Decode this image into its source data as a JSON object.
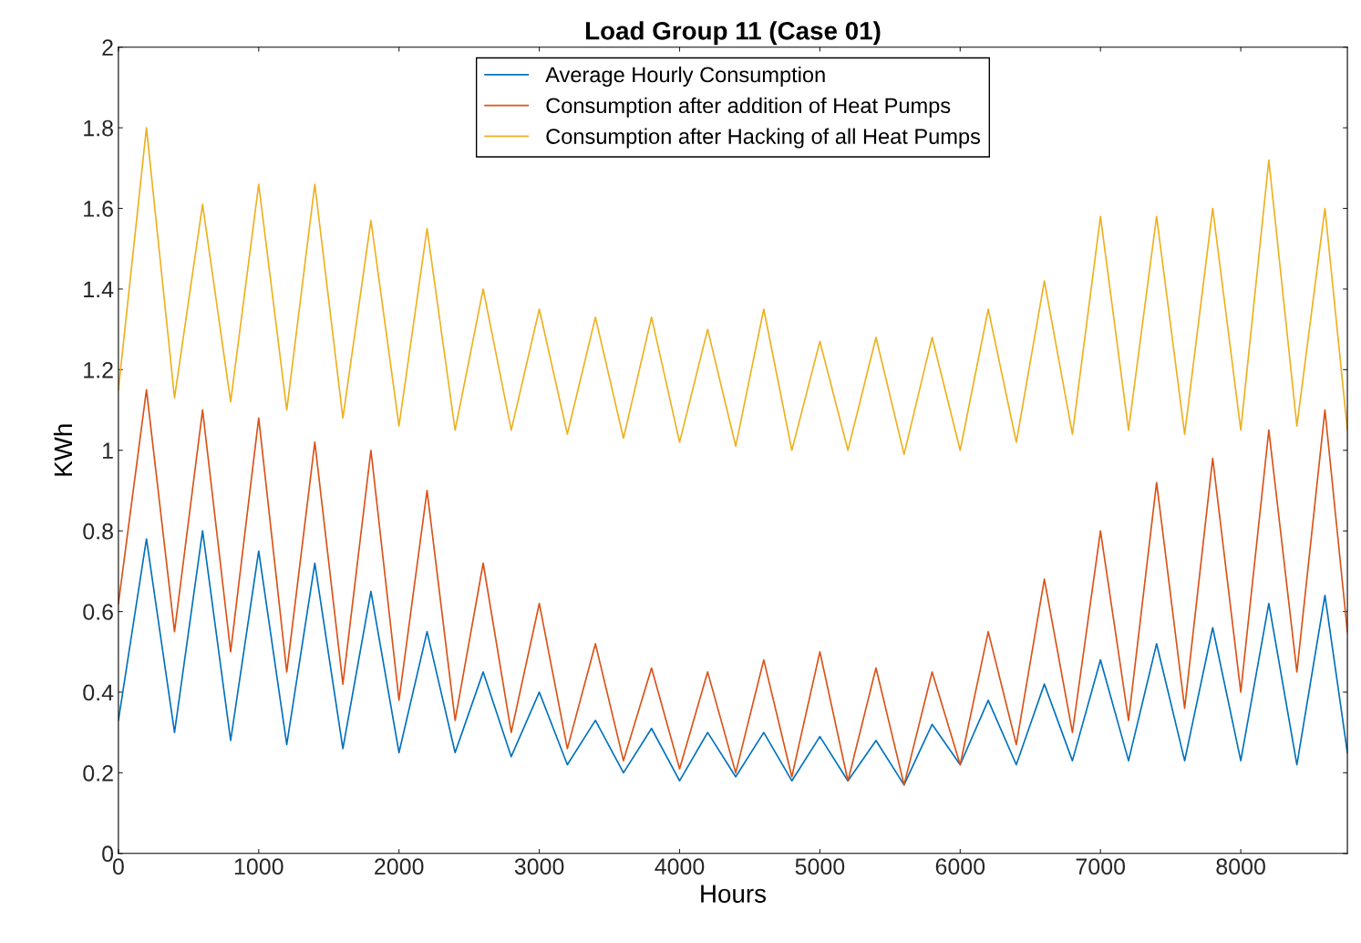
{
  "chart_data": {
    "type": "line",
    "title": "Load Group 11 (Case 01)",
    "xlabel": "Hours",
    "ylabel": "KWh",
    "x": [
      0,
      200,
      400,
      600,
      800,
      1000,
      1200,
      1400,
      1600,
      1800,
      2000,
      2200,
      2400,
      2600,
      2800,
      3000,
      3200,
      3400,
      3600,
      3800,
      4000,
      4200,
      4400,
      4600,
      4800,
      5000,
      5200,
      5400,
      5600,
      5800,
      6000,
      6200,
      6400,
      6600,
      6800,
      7000,
      7200,
      7400,
      7600,
      7800,
      8000,
      8200,
      8400,
      8600,
      8760
    ],
    "series": [
      {
        "name": "Average Hourly Consumption",
        "color": "#0072bd",
        "values": [
          0.33,
          0.78,
          0.3,
          0.8,
          0.28,
          0.75,
          0.27,
          0.72,
          0.26,
          0.65,
          0.25,
          0.55,
          0.25,
          0.45,
          0.24,
          0.4,
          0.22,
          0.33,
          0.2,
          0.31,
          0.18,
          0.3,
          0.19,
          0.3,
          0.18,
          0.29,
          0.18,
          0.28,
          0.17,
          0.32,
          0.22,
          0.38,
          0.22,
          0.42,
          0.23,
          0.48,
          0.23,
          0.52,
          0.23,
          0.56,
          0.23,
          0.62,
          0.22,
          0.64,
          0.25
        ]
      },
      {
        "name": "Consumption after addition of Heat Pumps",
        "color": "#d95319",
        "values": [
          0.62,
          1.15,
          0.55,
          1.1,
          0.5,
          1.08,
          0.45,
          1.02,
          0.42,
          1.0,
          0.38,
          0.9,
          0.33,
          0.72,
          0.3,
          0.62,
          0.26,
          0.52,
          0.23,
          0.46,
          0.21,
          0.45,
          0.2,
          0.48,
          0.19,
          0.5,
          0.18,
          0.46,
          0.17,
          0.45,
          0.22,
          0.55,
          0.27,
          0.68,
          0.3,
          0.8,
          0.33,
          0.92,
          0.36,
          0.98,
          0.4,
          1.05,
          0.45,
          1.1,
          0.55
        ]
      },
      {
        "name": "Consumption after Hacking of all Heat Pumps",
        "color": "#edb120",
        "values": [
          1.15,
          1.8,
          1.13,
          1.61,
          1.12,
          1.66,
          1.1,
          1.66,
          1.08,
          1.57,
          1.06,
          1.55,
          1.05,
          1.4,
          1.05,
          1.35,
          1.04,
          1.33,
          1.03,
          1.33,
          1.02,
          1.3,
          1.01,
          1.35,
          1.0,
          1.27,
          1.0,
          1.28,
          0.99,
          1.28,
          1.0,
          1.35,
          1.02,
          1.42,
          1.04,
          1.58,
          1.05,
          1.58,
          1.04,
          1.6,
          1.05,
          1.72,
          1.06,
          1.6,
          1.05
        ]
      }
    ],
    "xlim": [
      0,
      8760
    ],
    "xticks": [
      0,
      1000,
      2000,
      3000,
      4000,
      5000,
      6000,
      7000,
      8000
    ],
    "ylim": [
      0,
      2
    ],
    "yticks": [
      0,
      0.2,
      0.4,
      0.6,
      0.8,
      1,
      1.2,
      1.4,
      1.6,
      1.8,
      2
    ],
    "legend": "top",
    "grid": false
  }
}
